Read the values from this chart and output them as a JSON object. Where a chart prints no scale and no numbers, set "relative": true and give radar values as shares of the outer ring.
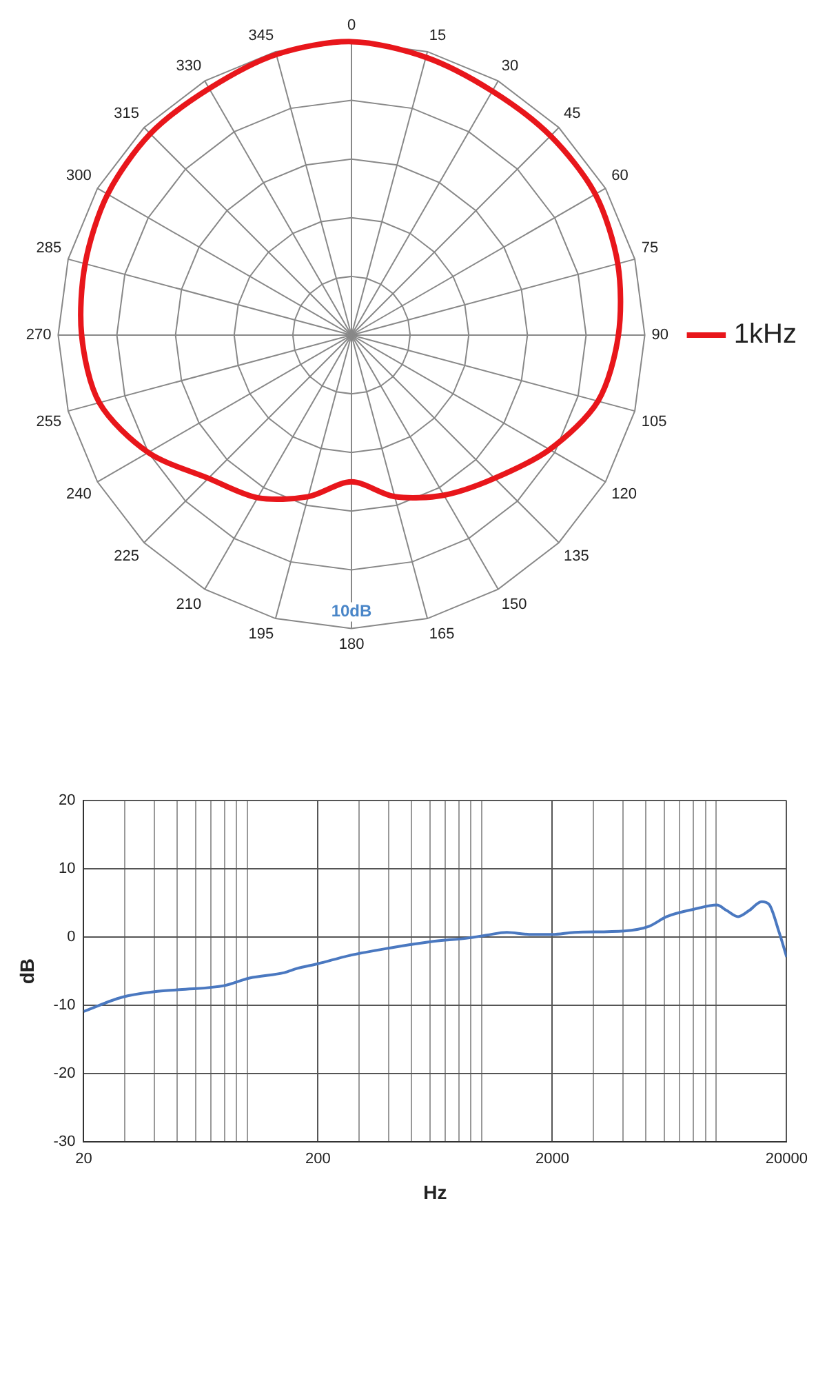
{
  "chart_data": [
    {
      "type": "radar",
      "relative": true,
      "categories": [
        "0",
        "15",
        "30",
        "45",
        "60",
        "75",
        "90",
        "105",
        "120",
        "135",
        "150",
        "165",
        "180",
        "195",
        "210",
        "225",
        "240",
        "255",
        "270",
        "285",
        "300",
        "315",
        "330",
        "345"
      ],
      "series": [
        {
          "name": "1kHz",
          "color": "#e8161b",
          "values": [
            1.0,
            0.98,
            0.96,
            0.96,
            0.96,
            0.94,
            0.91,
            0.87,
            0.78,
            0.69,
            0.63,
            0.57,
            0.5,
            0.57,
            0.64,
            0.69,
            0.8,
            0.89,
            0.92,
            0.94,
            0.96,
            0.97,
            0.97,
            0.99
          ]
        }
      ],
      "annotations": [
        "10dB"
      ],
      "legend": "right",
      "grid": true,
      "marker": "none"
    },
    {
      "type": "line",
      "xlabel": "Hz",
      "ylabel": "dB",
      "log": "x",
      "grid": true,
      "legend": false,
      "marker": "none",
      "xlim": [
        20,
        20000
      ],
      "ylim": [
        -30,
        20
      ],
      "xticks": [
        20,
        {
          "value": 30,
          "label": null
        },
        {
          "value": 40,
          "label": null
        },
        {
          "value": 50,
          "label": null
        },
        {
          "value": 60,
          "label": null
        },
        {
          "value": 70,
          "label": null
        },
        {
          "value": 80,
          "label": null
        },
        {
          "value": 90,
          "label": null
        },
        {
          "value": 100,
          "label": null
        },
        200,
        {
          "value": 300,
          "label": null
        },
        {
          "value": 400,
          "label": null
        },
        {
          "value": 500,
          "label": null
        },
        {
          "value": 600,
          "label": null
        },
        {
          "value": 700,
          "label": null
        },
        {
          "value": 800,
          "label": null
        },
        {
          "value": 900,
          "label": null
        },
        {
          "value": 1000,
          "label": null
        },
        2000,
        {
          "value": 3000,
          "label": null
        },
        {
          "value": 4000,
          "label": null
        },
        {
          "value": 5000,
          "label": null
        },
        {
          "value": 6000,
          "label": null
        },
        {
          "value": 7000,
          "label": null
        },
        {
          "value": 8000,
          "label": null
        },
        {
          "value": 9000,
          "label": null
        },
        {
          "value": 10000,
          "label": null
        },
        20000
      ],
      "yticks": [
        -30,
        -20,
        -10,
        0,
        10,
        20
      ],
      "series": [
        {
          "color": "#4a78c0",
          "x": [
            20,
            29.2,
            40.1,
            51.3,
            79.9,
            102,
            143.9,
            162.6,
            200,
            272,
            404,
            599,
            887,
            1053,
            1280,
            1596,
            2000,
            2484,
            4056,
            5187,
            6157,
            8073,
            10070,
            11100,
            12420,
            13840,
            15640,
            16830,
            18580,
            20000
          ],
          "values": [
            -10.9,
            -8.8,
            -8.0,
            -7.7,
            -7.1,
            -6.0,
            -5.2,
            -4.6,
            -3.9,
            -2.7,
            -1.6,
            -0.7,
            -0.1,
            0.3,
            0.7,
            0.4,
            0.4,
            0.7,
            0.9,
            1.6,
            3.0,
            4.1,
            4.7,
            3.9,
            3.0,
            3.9,
            5.2,
            4.8,
            0.7,
            -2.9
          ]
        }
      ]
    }
  ]
}
